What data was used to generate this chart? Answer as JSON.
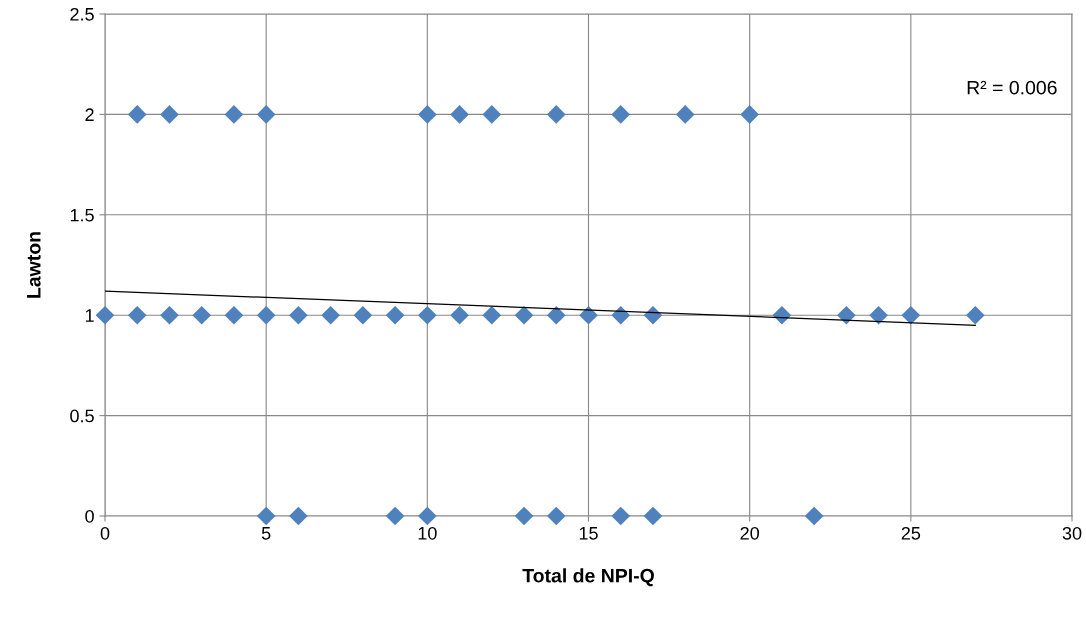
{
  "chart_data": {
    "type": "scatter",
    "xlabel": "Total de NPI-Q",
    "ylabel": "Lawton",
    "xlim": [
      0,
      30
    ],
    "xticks": [
      0,
      5,
      10,
      15,
      20,
      25,
      30
    ],
    "ylim": [
      0,
      2.5
    ],
    "yticks": [
      0,
      0.5,
      1,
      1.5,
      2,
      2.5
    ],
    "grid": true,
    "legend": false,
    "annotations": [
      "R² = 0.006"
    ],
    "series": [
      {
        "marker": "diamond",
        "color": "#4f81bd",
        "x": [
          1,
          2,
          4,
          5,
          10,
          11,
          12,
          14,
          16,
          18,
          20,
          0,
          1,
          2,
          3,
          4,
          5,
          6,
          7,
          8,
          9,
          10,
          11,
          12,
          13,
          14,
          15,
          16,
          17,
          21,
          23,
          24,
          25,
          27,
          5,
          6,
          9,
          10,
          13,
          14,
          16,
          17,
          22
        ],
        "values": [
          2,
          2,
          2,
          2,
          2,
          2,
          2,
          2,
          2,
          2,
          2,
          1,
          1,
          1,
          1,
          1,
          1,
          1,
          1,
          1,
          1,
          1,
          1,
          1,
          1,
          1,
          1,
          1,
          1,
          1,
          1,
          1,
          1,
          1,
          0,
          0,
          0,
          0,
          0,
          0,
          0,
          0,
          0
        ]
      },
      {
        "type": "line",
        "marker": "none",
        "color": "#000000",
        "x": [
          0,
          27
        ],
        "values": [
          1.12,
          0.95
        ]
      }
    ]
  }
}
